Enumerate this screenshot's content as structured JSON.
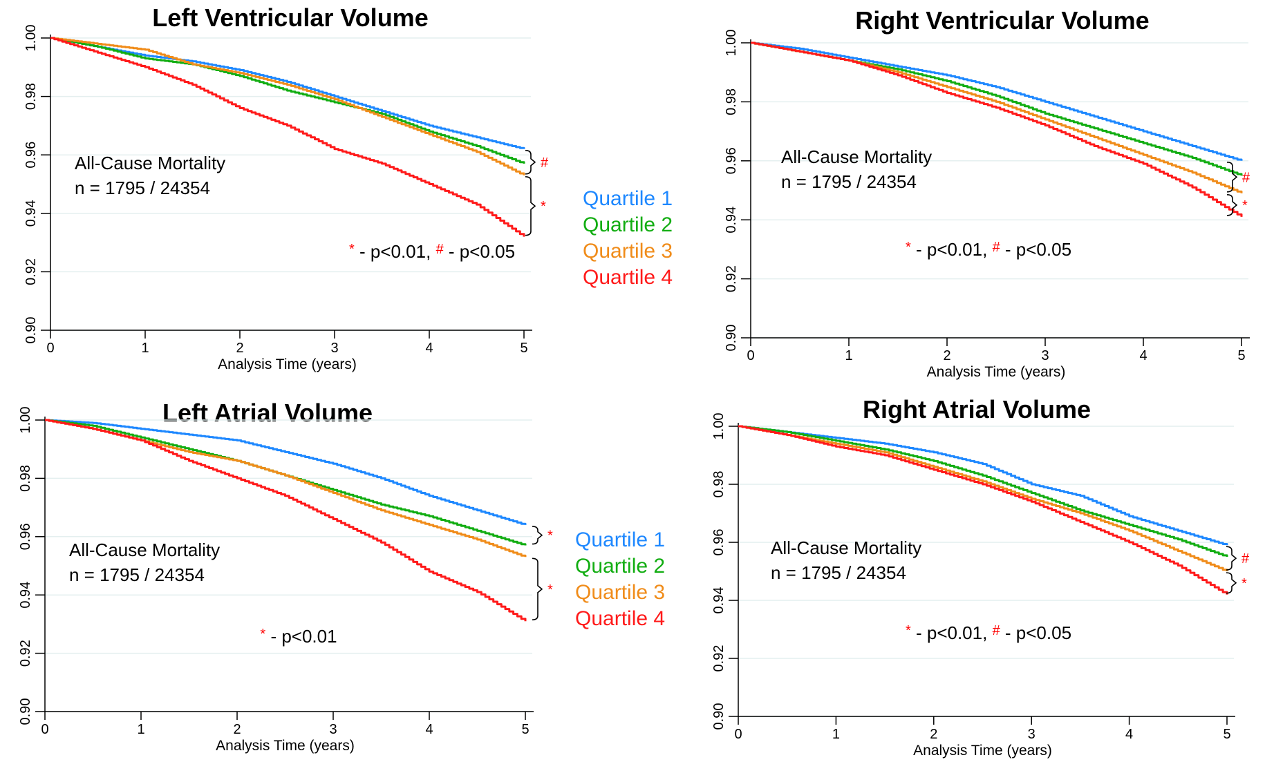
{
  "colors": {
    "Quartile 1": "#1e88ff",
    "Quartile 2": "#12ad12",
    "Quartile 3": "#f08c1a",
    "Quartile 4": "#ff1a1a",
    "sig": "#ff0000"
  },
  "legends": [
    {
      "items": [
        "Quartile 1",
        "Quartile 2",
        "Quartile 3",
        "Quartile 4"
      ]
    },
    {
      "items": [
        "Quartile 1",
        "Quartile 2",
        "Quartile 3",
        "Quartile 4"
      ]
    }
  ],
  "chart_data": [
    {
      "type": "line",
      "title": "Left Ventricular Volume",
      "xlabel": "Analysis Time (years)",
      "ylabel": "",
      "xlim": [
        0,
        5
      ],
      "ylim": [
        0.9,
        1.0
      ],
      "xticks": [
        "0",
        "1",
        "2",
        "3",
        "4",
        "5"
      ],
      "yticks": [
        "0.90",
        "0.92",
        "0.94",
        "0.96",
        "0.98",
        "1.00"
      ],
      "grid": true,
      "annotation_lines": [
        "All-Cause Mortality",
        "n = 1795 / 24354"
      ],
      "footnote": {
        "parts": [
          {
            "text": "*",
            "sig": true
          },
          {
            "text": " - p<0.01, ",
            "sig": false
          },
          {
            "text": "#",
            "sig": true
          },
          {
            "text": " - p<0.05",
            "sig": false
          }
        ]
      },
      "comparisons": [
        {
          "from": "Quartile 1",
          "to": "Quartile 3",
          "symbol": "#"
        },
        {
          "from": "Quartile 3",
          "to": "Quartile 4",
          "symbol": "*"
        }
      ],
      "x": [
        0,
        0.5,
        1,
        1.5,
        2,
        2.5,
        3,
        3.5,
        4,
        4.5,
        5
      ],
      "series": [
        {
          "name": "Quartile 1",
          "values": [
            1.0,
            0.997,
            0.994,
            0.992,
            0.989,
            0.985,
            0.98,
            0.975,
            0.97,
            0.966,
            0.962
          ]
        },
        {
          "name": "Quartile 2",
          "values": [
            1.0,
            0.997,
            0.993,
            0.991,
            0.987,
            0.982,
            0.978,
            0.974,
            0.968,
            0.963,
            0.957
          ]
        },
        {
          "name": "Quartile 3",
          "values": [
            1.0,
            0.998,
            0.996,
            0.991,
            0.988,
            0.984,
            0.979,
            0.973,
            0.967,
            0.961,
            0.953
          ]
        },
        {
          "name": "Quartile 4",
          "values": [
            1.0,
            0.995,
            0.99,
            0.984,
            0.976,
            0.97,
            0.962,
            0.957,
            0.95,
            0.943,
            0.932
          ]
        }
      ]
    },
    {
      "type": "line",
      "title": "Right Ventricular Volume",
      "xlabel": "Analysis Time (years)",
      "ylabel": "",
      "xlim": [
        0,
        5
      ],
      "ylim": [
        0.9,
        1.0
      ],
      "xticks": [
        "0",
        "1",
        "2",
        "3",
        "4",
        "5"
      ],
      "yticks": [
        "0.90",
        "0.92",
        "0.94",
        "0.96",
        "0.98",
        "1.00"
      ],
      "grid": true,
      "annotation_lines": [
        "All-Cause Mortality",
        "n = 1795 / 24354"
      ],
      "footnote": {
        "parts": [
          {
            "text": "*",
            "sig": true
          },
          {
            "text": " - p<0.01, ",
            "sig": false
          },
          {
            "text": "#",
            "sig": true
          },
          {
            "text": " - p<0.05",
            "sig": false
          }
        ]
      },
      "comparisons": [
        {
          "from": "Quartile 1",
          "to": "Quartile 3",
          "symbol": "#"
        },
        {
          "from": "Quartile 3",
          "to": "Quartile 4",
          "symbol": "*"
        }
      ],
      "x": [
        0,
        0.5,
        1,
        1.5,
        2,
        2.5,
        3,
        3.5,
        4,
        4.5,
        5
      ],
      "series": [
        {
          "name": "Quartile 1",
          "values": [
            1.0,
            0.998,
            0.995,
            0.992,
            0.989,
            0.985,
            0.98,
            0.975,
            0.97,
            0.965,
            0.96
          ]
        },
        {
          "name": "Quartile 2",
          "values": [
            1.0,
            0.997,
            0.994,
            0.991,
            0.987,
            0.982,
            0.976,
            0.971,
            0.966,
            0.961,
            0.955
          ]
        },
        {
          "name": "Quartile 3",
          "values": [
            1.0,
            0.997,
            0.994,
            0.99,
            0.985,
            0.98,
            0.974,
            0.968,
            0.962,
            0.956,
            0.949
          ]
        },
        {
          "name": "Quartile 4",
          "values": [
            1.0,
            0.997,
            0.994,
            0.989,
            0.983,
            0.978,
            0.972,
            0.965,
            0.959,
            0.951,
            0.941
          ]
        }
      ]
    },
    {
      "type": "line",
      "title": "Left Atrial Volume",
      "xlabel": "Analysis Time (years)",
      "ylabel": "",
      "xlim": [
        0,
        5
      ],
      "ylim": [
        0.9,
        1.0
      ],
      "xticks": [
        "0",
        "1",
        "2",
        "3",
        "4",
        "5"
      ],
      "yticks": [
        "0.90",
        "0.92",
        "0.94",
        "0.96",
        "0.98",
        "1.00"
      ],
      "grid": true,
      "annotation_lines": [
        "All-Cause Mortality",
        "n = 1795 / 24354"
      ],
      "footnote": {
        "parts": [
          {
            "text": "*",
            "sig": true
          },
          {
            "text": " - p<0.01",
            "sig": false
          }
        ]
      },
      "comparisons": [
        {
          "from": "Quartile 1",
          "to": "Quartile 2",
          "symbol": "*"
        },
        {
          "from": "Quartile 3",
          "to": "Quartile 4",
          "symbol": "*"
        }
      ],
      "x": [
        0,
        0.5,
        1,
        1.5,
        2,
        2.5,
        3,
        3.5,
        4,
        4.5,
        5
      ],
      "series": [
        {
          "name": "Quartile 1",
          "values": [
            1.0,
            0.999,
            0.997,
            0.995,
            0.993,
            0.989,
            0.985,
            0.98,
            0.974,
            0.969,
            0.964
          ]
        },
        {
          "name": "Quartile 2",
          "values": [
            1.0,
            0.998,
            0.994,
            0.99,
            0.986,
            0.981,
            0.976,
            0.971,
            0.967,
            0.962,
            0.957
          ]
        },
        {
          "name": "Quartile 3",
          "values": [
            1.0,
            0.997,
            0.993,
            0.989,
            0.986,
            0.981,
            0.975,
            0.969,
            0.964,
            0.959,
            0.953
          ]
        },
        {
          "name": "Quartile 4",
          "values": [
            1.0,
            0.997,
            0.993,
            0.986,
            0.98,
            0.974,
            0.966,
            0.958,
            0.948,
            0.941,
            0.931
          ]
        }
      ]
    },
    {
      "type": "line",
      "title": "Right Atrial Volume",
      "xlabel": "Analysis Time (years)",
      "ylabel": "",
      "xlim": [
        0,
        5
      ],
      "ylim": [
        0.9,
        1.0
      ],
      "xticks": [
        "0",
        "1",
        "2",
        "3",
        "4",
        "5"
      ],
      "yticks": [
        "0.90",
        "0.92",
        "0.94",
        "0.96",
        "0.98",
        "1.00"
      ],
      "grid": true,
      "annotation_lines": [
        "All-Cause Mortality",
        "n = 1795 / 24354"
      ],
      "footnote": {
        "parts": [
          {
            "text": "*",
            "sig": true
          },
          {
            "text": " - p<0.01, ",
            "sig": false
          },
          {
            "text": "#",
            "sig": true
          },
          {
            "text": " - p<0.05",
            "sig": false
          }
        ]
      },
      "comparisons": [
        {
          "from": "Quartile 1",
          "to": "Quartile 3",
          "symbol": "#"
        },
        {
          "from": "Quartile 3",
          "to": "Quartile 4",
          "symbol": "*"
        }
      ],
      "x": [
        0,
        0.5,
        1,
        1.5,
        2,
        2.5,
        3,
        3.5,
        4,
        4.5,
        5
      ],
      "series": [
        {
          "name": "Quartile 1",
          "values": [
            1.0,
            0.998,
            0.996,
            0.994,
            0.991,
            0.987,
            0.98,
            0.976,
            0.969,
            0.964,
            0.959
          ]
        },
        {
          "name": "Quartile 2",
          "values": [
            1.0,
            0.998,
            0.995,
            0.992,
            0.988,
            0.983,
            0.977,
            0.971,
            0.966,
            0.961,
            0.955
          ]
        },
        {
          "name": "Quartile 3",
          "values": [
            1.0,
            0.997,
            0.994,
            0.991,
            0.986,
            0.981,
            0.975,
            0.97,
            0.964,
            0.957,
            0.95
          ]
        },
        {
          "name": "Quartile 4",
          "values": [
            1.0,
            0.997,
            0.993,
            0.99,
            0.985,
            0.98,
            0.974,
            0.967,
            0.96,
            0.952,
            0.942
          ]
        }
      ]
    }
  ]
}
